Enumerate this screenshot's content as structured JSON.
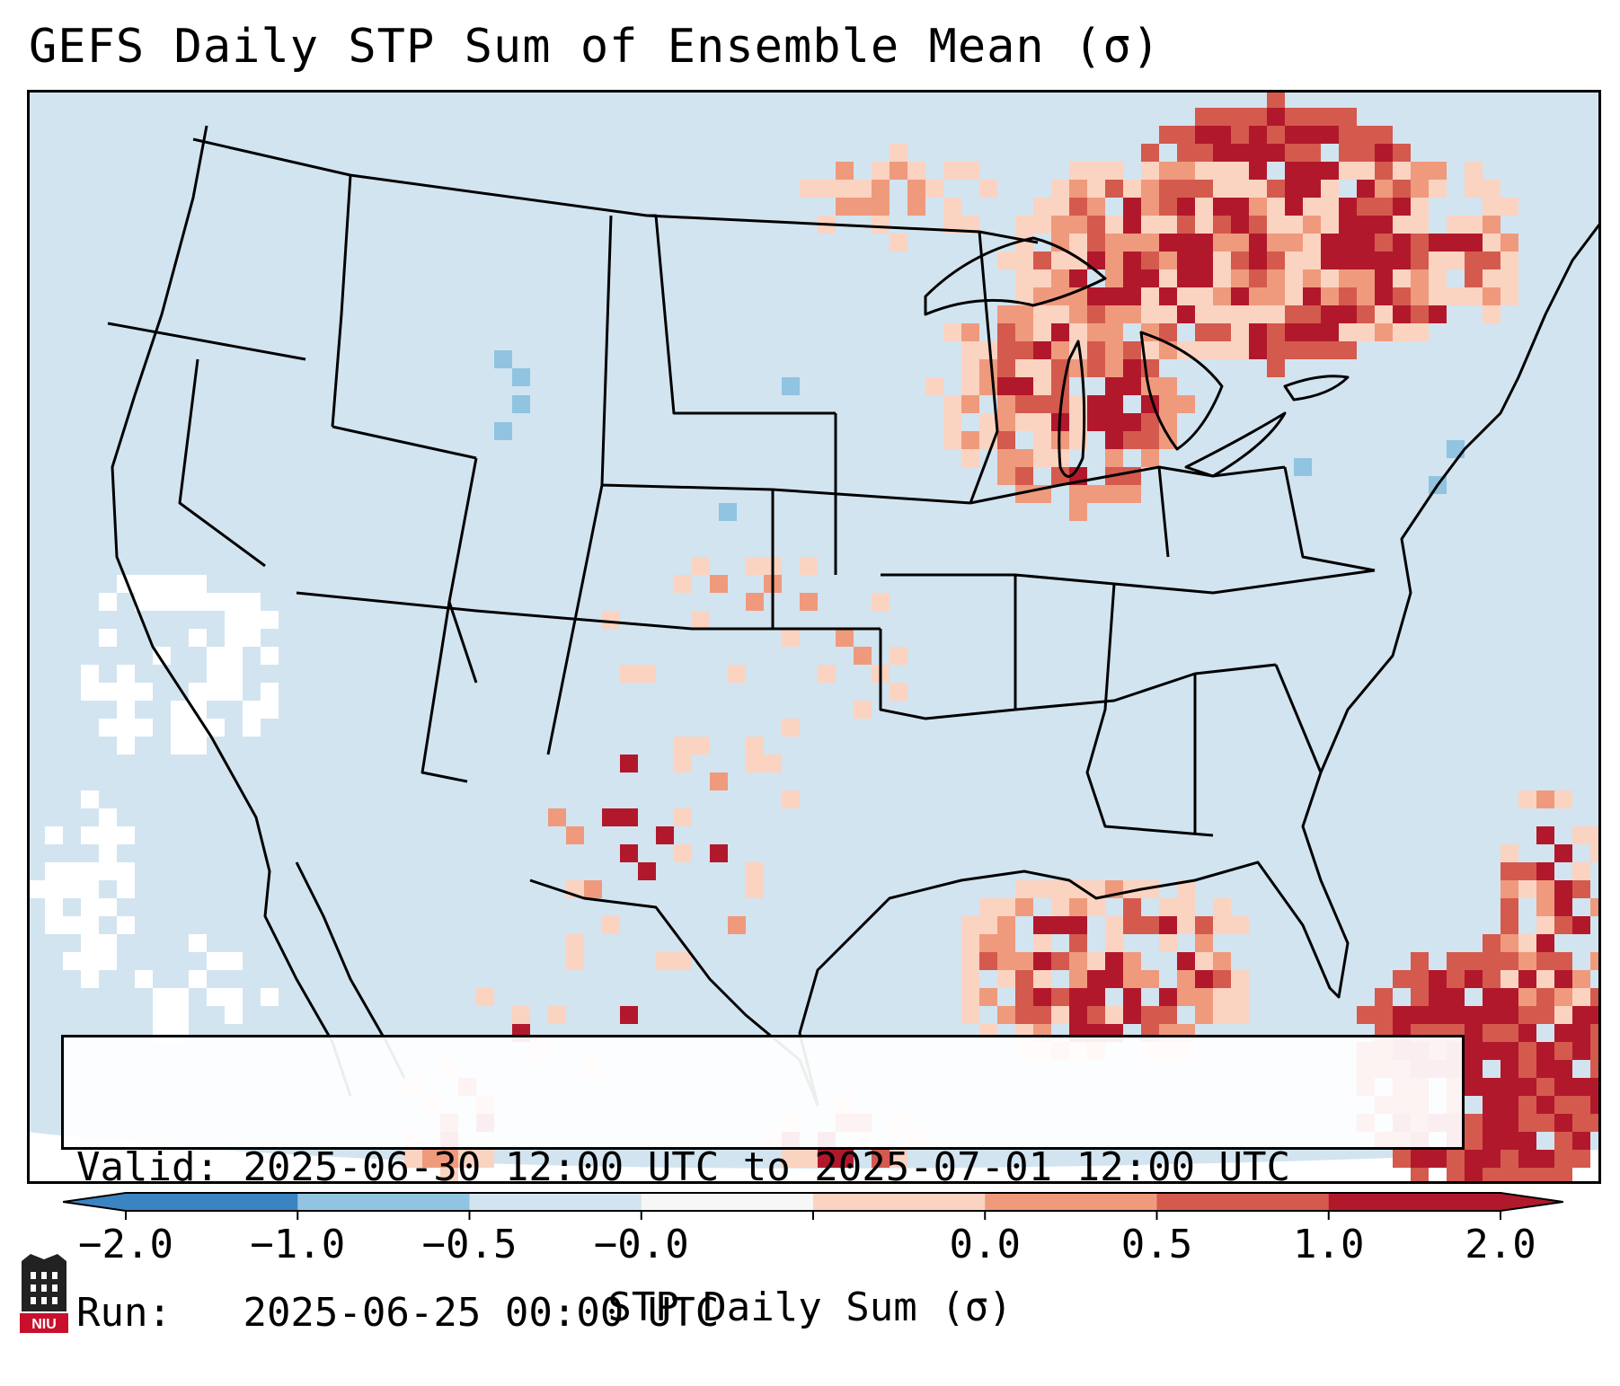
{
  "title": "GEFS Daily STP Sum of Ensemble Mean (σ)",
  "info": {
    "valid_label": "Valid:",
    "valid_range": "2025-06-30 12:00 UTC to 2025-07-01 12:00 UTC",
    "run_label": "Run:",
    "run_time": "2025-06-25 00:00 UTC"
  },
  "colorbar": {
    "label": "STP Daily Sum (σ)",
    "ticks": [
      "−2.0",
      "−1.0",
      "−0.5",
      "−0.0",
      "0.0",
      "0.5",
      "1.0",
      "2.0"
    ],
    "colors": [
      "#3b84c2",
      "#90c4e0",
      "#d2e4f0",
      "#f7f7f7",
      "#fbd3c1",
      "#ef9a7d",
      "#d45a4e",
      "#b2182b"
    ]
  },
  "logo_text": "NIU",
  "colors": {
    "background": "#d2e4f0",
    "border": "#000000",
    "strong_red": "#b2182b",
    "med_red": "#d45a4e",
    "light_red": "#ef9a7d",
    "pale_red": "#fbd3c1",
    "light_blue": "#90c4e0",
    "white": "#ffffff"
  }
}
